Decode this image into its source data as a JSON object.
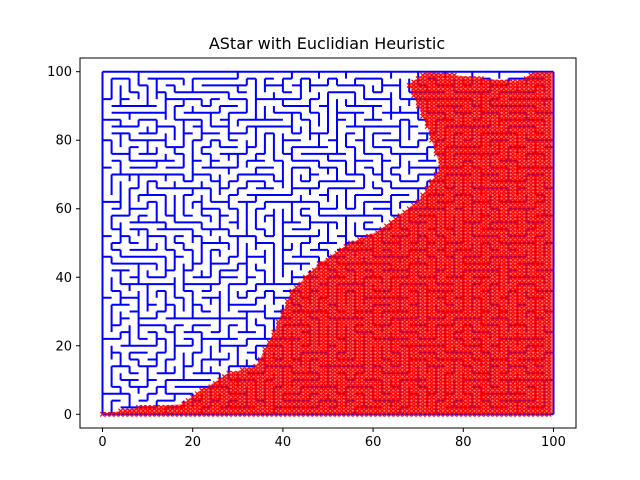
{
  "chart_data": {
    "type": "scatter",
    "title": "AStar with Euclidian Heuristic",
    "xlabel": "",
    "ylabel": "",
    "xlim": [
      -5,
      105
    ],
    "ylim": [
      -4,
      104
    ],
    "xticks": [
      0,
      20,
      40,
      60,
      80,
      100
    ],
    "yticks": [
      0,
      20,
      40,
      60,
      80,
      100
    ],
    "xtick_labels": [
      "0",
      "20",
      "40",
      "60",
      "80",
      "100"
    ],
    "ytick_labels": [
      "0",
      "20",
      "40",
      "60",
      "80",
      "100"
    ],
    "grid": false,
    "series": [
      {
        "kind": "maze_walls",
        "color": "#0000ff",
        "grid_min": 0,
        "grid_max": 100,
        "cell_size": 2
      },
      {
        "kind": "explored_nodes",
        "color": "#ff0000",
        "marker": "x",
        "region": [
          [
            0,
            0
          ],
          [
            8,
            2
          ],
          [
            18,
            3
          ],
          [
            22,
            7
          ],
          [
            28,
            12
          ],
          [
            34,
            14
          ],
          [
            38,
            24
          ],
          [
            42,
            36
          ],
          [
            48,
            44
          ],
          [
            55,
            50
          ],
          [
            62,
            54
          ],
          [
            70,
            62
          ],
          [
            75,
            72
          ],
          [
            72,
            84
          ],
          [
            68,
            96
          ],
          [
            72,
            100
          ],
          [
            85,
            98
          ],
          [
            92,
            97
          ],
          [
            96,
            100
          ],
          [
            100,
            100
          ],
          [
            100,
            0
          ]
        ]
      }
    ]
  }
}
